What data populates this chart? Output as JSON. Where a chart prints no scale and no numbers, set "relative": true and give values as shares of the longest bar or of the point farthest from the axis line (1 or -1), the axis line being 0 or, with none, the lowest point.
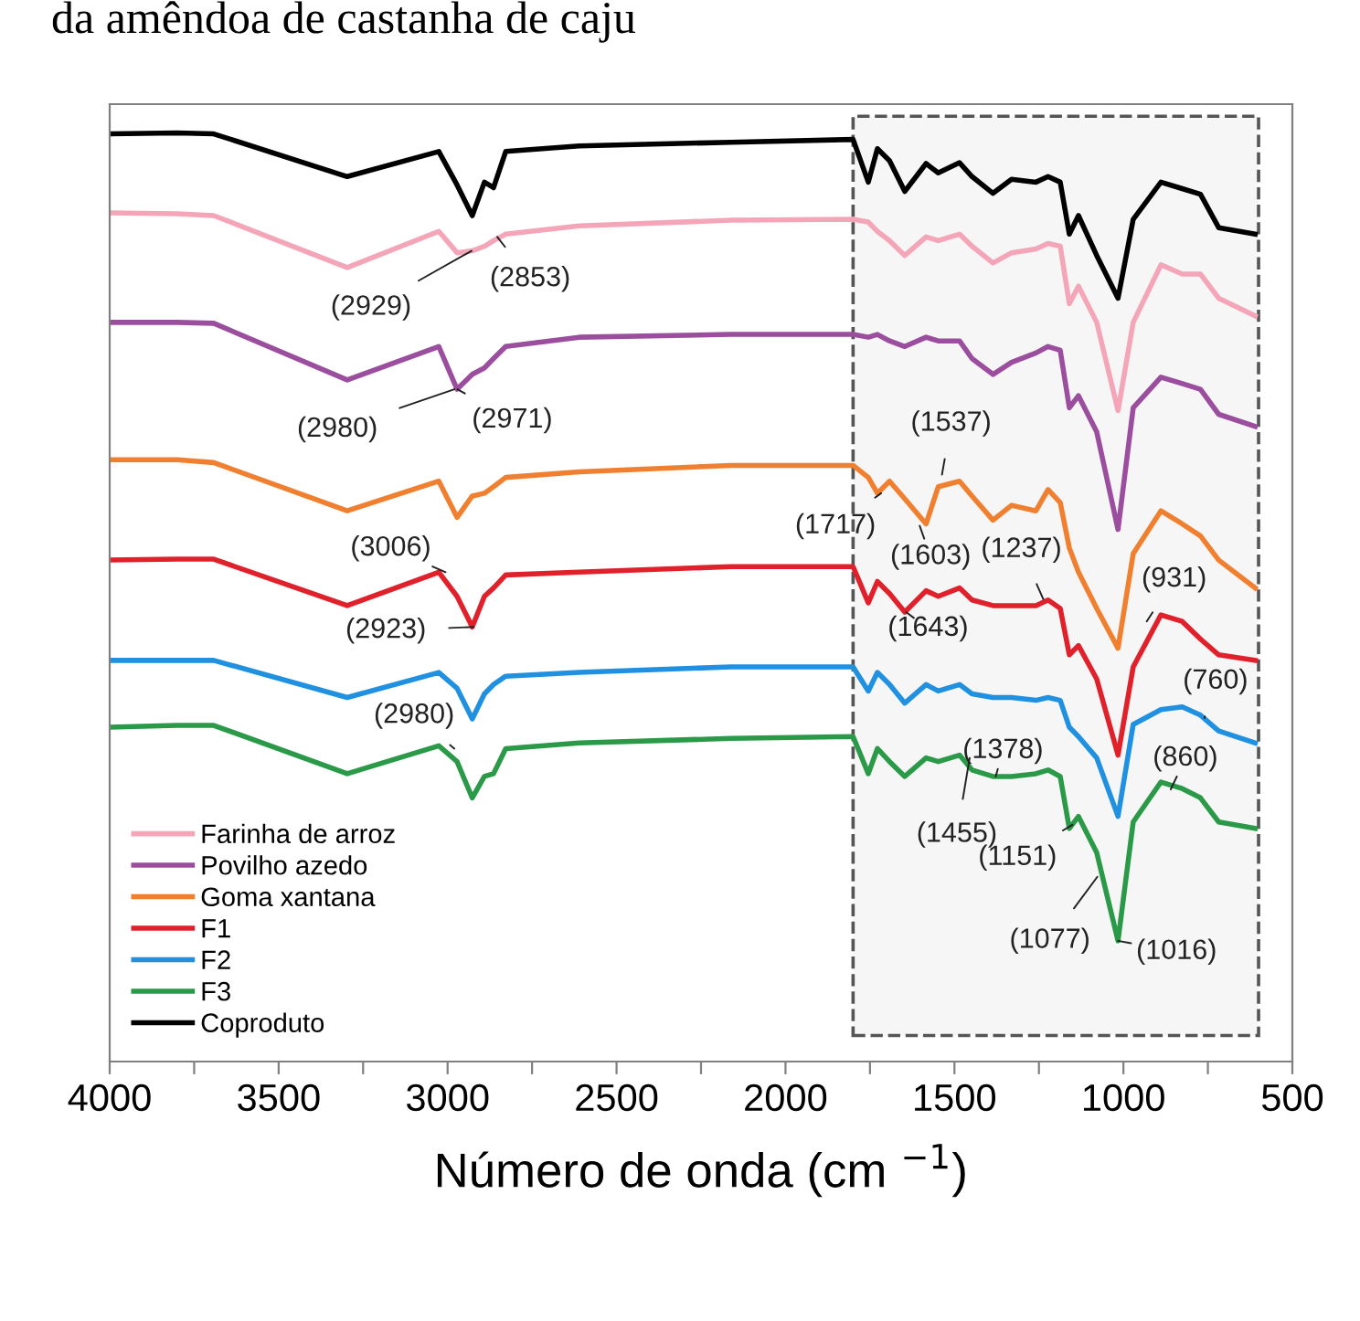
{
  "chart_data": {
    "type": "line",
    "relative": true,
    "title": "da amêndoa de castanha de caju",
    "xlabel": "Número de onda (cm $^{−1}$)",
    "x": [
      4000,
      3800,
      3692,
      3297,
      3026,
      2972,
      2927,
      2891,
      2864,
      2828,
      2611,
      2161,
      1800,
      1755,
      1728,
      1692,
      1647,
      1584,
      1548,
      1485,
      1448,
      1386,
      1331,
      1259,
      1223,
      1187,
      1160,
      1133,
      1079,
      1016,
      971,
      889,
      826,
      772,
      718,
      610
    ],
    "xlim": [
      4000,
      500
    ],
    "xticks": [
      4000,
      {
        "value": 3750,
        "label": null
      },
      3500,
      {
        "value": 3250,
        "label": null
      },
      3000,
      {
        "value": 2750,
        "label": null
      },
      2500,
      {
        "value": 2250,
        "label": null
      },
      2000,
      {
        "value": 1750,
        "label": null
      },
      1500,
      {
        "value": 1250,
        "label": null
      },
      1000,
      {
        "value": 750,
        "label": null
      },
      500
    ],
    "series": [
      {
        "name": "Farinha de arroz",
        "color": "#f4a6b8",
        "values": [
          0.914,
          0.913,
          0.911,
          0.855,
          0.894,
          0.871,
          0.873,
          0.878,
          0.884,
          0.891,
          0.9,
          0.906,
          0.907,
          0.904,
          0.894,
          0.884,
          0.868,
          0.888,
          0.884,
          0.891,
          0.878,
          0.86,
          0.871,
          0.875,
          0.881,
          0.878,
          0.816,
          0.835,
          0.796,
          0.701,
          0.796,
          0.858,
          0.848,
          0.848,
          0.822,
          0.803
        ]
      },
      {
        "name": "Povilho azedo",
        "color": "#9b4d9e",
        "values": [
          0.796,
          0.796,
          0.795,
          0.734,
          0.77,
          0.724,
          0.74,
          0.747,
          0.757,
          0.77,
          0.78,
          0.783,
          0.783,
          0.78,
          0.783,
          0.776,
          0.77,
          0.78,
          0.776,
          0.776,
          0.757,
          0.74,
          0.753,
          0.763,
          0.77,
          0.766,
          0.704,
          0.717,
          0.678,
          0.573,
          0.704,
          0.737,
          0.73,
          0.724,
          0.697,
          0.684
        ]
      },
      {
        "name": "Goma xantana",
        "color": "#f08030",
        "values": [
          0.648,
          0.648,
          0.645,
          0.593,
          0.625,
          0.586,
          0.609,
          0.612,
          0.619,
          0.629,
          0.635,
          0.642,
          0.642,
          0.629,
          0.612,
          0.625,
          0.606,
          0.579,
          0.619,
          0.625,
          0.609,
          0.583,
          0.599,
          0.593,
          0.616,
          0.602,
          0.553,
          0.527,
          0.488,
          0.445,
          0.547,
          0.593,
          0.579,
          0.566,
          0.54,
          0.51
        ]
      },
      {
        "name": "F1",
        "color": "#e0202a",
        "values": [
          0.54,
          0.541,
          0.541,
          0.491,
          0.527,
          0.501,
          0.468,
          0.501,
          0.51,
          0.524,
          0.527,
          0.533,
          0.533,
          0.494,
          0.517,
          0.504,
          0.484,
          0.507,
          0.501,
          0.51,
          0.497,
          0.491,
          0.491,
          0.491,
          0.497,
          0.488,
          0.438,
          0.448,
          0.412,
          0.33,
          0.425,
          0.481,
          0.474,
          0.455,
          0.438,
          0.432
        ]
      },
      {
        "name": "F2",
        "color": "#2090e0",
        "values": [
          0.432,
          0.432,
          0.432,
          0.392,
          0.419,
          0.402,
          0.369,
          0.396,
          0.406,
          0.415,
          0.419,
          0.425,
          0.425,
          0.399,
          0.419,
          0.406,
          0.386,
          0.406,
          0.399,
          0.406,
          0.396,
          0.392,
          0.392,
          0.389,
          0.392,
          0.389,
          0.36,
          0.35,
          0.327,
          0.264,
          0.363,
          0.379,
          0.382,
          0.373,
          0.356,
          0.343
        ]
      },
      {
        "name": "F3",
        "color": "#2a9a48",
        "values": [
          0.36,
          0.362,
          0.362,
          0.31,
          0.34,
          0.323,
          0.284,
          0.307,
          0.31,
          0.337,
          0.343,
          0.348,
          0.35,
          0.31,
          0.337,
          0.323,
          0.307,
          0.327,
          0.323,
          0.33,
          0.314,
          0.307,
          0.307,
          0.31,
          0.314,
          0.307,
          0.251,
          0.264,
          0.225,
          0.13,
          0.258,
          0.301,
          0.294,
          0.284,
          0.258,
          0.251
        ]
      },
      {
        "name": "Coproduto",
        "color": "#000000",
        "values": [
          0.999,
          1.0,
          0.999,
          0.953,
          0.98,
          0.944,
          0.911,
          0.947,
          0.941,
          0.98,
          0.986,
          0.99,
          0.993,
          0.947,
          0.983,
          0.97,
          0.937,
          0.967,
          0.957,
          0.968,
          0.953,
          0.935,
          0.95,
          0.947,
          0.953,
          0.947,
          0.891,
          0.911,
          0.868,
          0.822,
          0.907,
          0.947,
          0.94,
          0.934,
          0.898,
          0.891
        ]
      }
    ],
    "bands": [
      {
        "axis": "x",
        "from": 1800,
        "to": 600,
        "color": "#555555"
      }
    ],
    "annotations": [
      {
        "text": "(2929)",
        "x": 2929,
        "y": 0.873
      },
      {
        "text": "(2853)",
        "x": 2853,
        "y": 0.888
      },
      {
        "text": "(2980)",
        "x": 2980,
        "y": 0.724
      },
      {
        "text": "(2971)",
        "x": 2971,
        "y": 0.724
      },
      {
        "text": "(3006)",
        "x": 3006,
        "y": 0.527
      },
      {
        "text": "(2923)",
        "x": 2923,
        "y": 0.468
      },
      {
        "text": "(2980)",
        "x": 2980,
        "y": 0.337
      },
      {
        "text": "(1537)",
        "x": 1537,
        "y": 0.632
      },
      {
        "text": "(1717)",
        "x": 1717,
        "y": 0.612
      },
      {
        "text": "(1603)",
        "x": 1603,
        "y": 0.577
      },
      {
        "text": "(1237)",
        "x": 1237,
        "y": 0.498
      },
      {
        "text": "(1643)",
        "x": 1643,
        "y": 0.484
      },
      {
        "text": "(931)",
        "x": 931,
        "y": 0.474
      },
      {
        "text": "(760)",
        "x": 760,
        "y": 0.37
      },
      {
        "text": "(1378)",
        "x": 1378,
        "y": 0.307
      },
      {
        "text": "(1455)",
        "x": 1455,
        "y": 0.327
      },
      {
        "text": "(860)",
        "x": 860,
        "y": 0.293
      },
      {
        "text": "(1151)",
        "x": 1151,
        "y": 0.255
      },
      {
        "text": "(1077)",
        "x": 1077,
        "y": 0.199
      },
      {
        "text": "(1016)",
        "x": 1016,
        "y": 0.13
      }
    ],
    "legend": "bottom left",
    "grid": false,
    "line_style": "solid",
    "marker": "none"
  }
}
